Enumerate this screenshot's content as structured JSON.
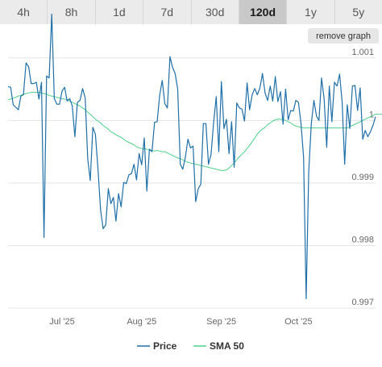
{
  "tabs": [
    {
      "label": "4h",
      "active": false
    },
    {
      "label": "8h",
      "active": false
    },
    {
      "label": "1d",
      "active": false
    },
    {
      "label": "7d",
      "active": false
    },
    {
      "label": "30d",
      "active": false
    },
    {
      "label": "120d",
      "active": true
    },
    {
      "label": "1y",
      "active": false
    },
    {
      "label": "5y",
      "active": false
    }
  ],
  "remove_graph_label": "remove graph",
  "colors": {
    "price": "#1f6fa8",
    "sma": "#4ccf87",
    "grid": "#e6e6e6",
    "active_tab": "#c9c9c9"
  },
  "chart_data": {
    "type": "line",
    "ylim": [
      0.997,
      1.0011
    ],
    "yticks": [
      {
        "value": 0.997,
        "label": "0.997"
      },
      {
        "value": 0.998,
        "label": "0.998"
      },
      {
        "value": 0.999,
        "label": "0.999"
      },
      {
        "value": 1.0,
        "label": "1"
      },
      {
        "value": 1.001,
        "label": "1.001"
      }
    ],
    "xticks": [
      {
        "label": "Jul '25",
        "index": 21
      },
      {
        "label": "Aug '25",
        "index": 52
      },
      {
        "label": "Sep '25",
        "index": 83
      },
      {
        "label": "Oct '25",
        "index": 113
      }
    ],
    "series": [
      {
        "name": "Price",
        "values": [
          1.00054,
          1.00053,
          1.00025,
          1.00021,
          1.00017,
          1.00039,
          1.00041,
          1.00092,
          1.00086,
          1.00059,
          1.00059,
          1.00061,
          1.00034,
          1.00061,
          0.99813,
          1.00071,
          1.00068,
          1.0017,
          1.00035,
          1.00026,
          1.00026,
          1.00047,
          1.00053,
          1.00031,
          1.00035,
          1.00023,
          0.99974,
          1.00029,
          1.00032,
          1.00051,
          1.00036,
          0.99938,
          0.99904,
          0.99989,
          0.99978,
          0.99922,
          0.99857,
          0.99827,
          0.99833,
          0.99891,
          0.99867,
          0.99877,
          0.99839,
          0.99883,
          0.99862,
          0.99901,
          0.99899,
          0.99913,
          0.99915,
          0.9993,
          0.99905,
          0.99947,
          0.99929,
          0.99972,
          0.99887,
          0.99954,
          0.9995,
          0.99997,
          0.99998,
          1.0004,
          1.00064,
          1.00027,
          1.0002,
          1.00102,
          1.00085,
          1.00075,
          1.0005,
          0.9993,
          0.99922,
          0.99941,
          0.9997,
          0.99956,
          0.99959,
          0.9987,
          0.99891,
          0.99898,
          0.99995,
          0.99995,
          0.9993,
          0.99946,
          0.99997,
          1.00038,
          0.9995,
          1.00062,
          0.99987,
          1.00002,
          0.99947,
          0.99998,
          0.99925,
          1.00028,
          1.0002,
          1.00018,
          0.99999,
          1.0006,
          1.00017,
          1.00041,
          1.00051,
          1.00041,
          1.00052,
          1.00075,
          1.00044,
          1.00032,
          1.00055,
          1.00031,
          1.0007,
          1.0003,
          1.00046,
          0.99994,
          1.0005,
          1.00001,
          1.00016,
          1.00015,
          1.00032,
          1.00029,
          0.99995,
          0.99941,
          0.99715,
          0.99919,
          0.99995,
          1.00032,
          1.00007,
          1.0,
          1.00068,
          1.00034,
          0.99957,
          1.00055,
          0.99998,
          1.00061,
          1.00055,
          1.00074,
          1.0003,
          0.9993,
          1.00025,
          0.99987,
          1.00055,
          1.00056,
          1.00016,
          1.00052,
          0.9997,
          0.99984,
          0.99974,
          0.99982,
          0.99992,
          1.00006
        ]
      },
      {
        "name": "SMA 50",
        "values": [
          1.00033,
          1.00034,
          1.00036,
          1.00037,
          1.00039,
          1.0004,
          1.00042,
          1.00043,
          1.00044,
          1.00045,
          1.00045,
          1.00045,
          1.00045,
          1.00044,
          1.00043,
          1.00042,
          1.0004,
          1.00039,
          1.00038,
          1.00037,
          1.00036,
          1.00035,
          1.00034,
          1.00033,
          1.00031,
          1.00029,
          1.00027,
          1.00025,
          1.00023,
          1.0002,
          1.00017,
          1.00013,
          1.0001,
          1.00006,
          1.00002,
          0.99999,
          0.99996,
          0.99992,
          0.99989,
          0.99986,
          0.99982,
          0.9998,
          0.99977,
          0.99975,
          0.99973,
          0.9997,
          0.99967,
          0.99965,
          0.99963,
          0.99961,
          0.99958,
          0.99956,
          0.99955,
          0.99955,
          0.99954,
          0.99953,
          0.99952,
          0.99951,
          0.99952,
          0.99951,
          0.9995,
          0.9995,
          0.99948,
          0.99946,
          0.99944,
          0.99942,
          0.9994,
          0.99939,
          0.99937,
          0.99935,
          0.99933,
          0.99932,
          0.99931,
          0.9993,
          0.99929,
          0.99928,
          0.99927,
          0.99926,
          0.99925,
          0.99924,
          0.99923,
          0.99922,
          0.99921,
          0.9992,
          0.9992,
          0.99921,
          0.99924,
          0.99928,
          0.99932,
          0.99937,
          0.99942,
          0.99946,
          0.9995,
          0.99955,
          0.9996,
          0.99966,
          0.99972,
          0.99978,
          0.99983,
          0.99986,
          0.99989,
          0.99993,
          0.99996,
          0.99999,
          1.00001,
          1.00002,
          1.00002,
          1.00001,
          1.0,
          0.99998,
          0.99996,
          0.99993,
          0.99991,
          0.9999,
          0.99989,
          0.99988,
          0.99988,
          0.99988,
          0.99988,
          0.99988,
          0.99988,
          0.99988,
          0.99988,
          0.99988,
          0.99988,
          0.99988,
          0.99988,
          0.99988,
          0.99988,
          0.99988,
          0.99988,
          0.99988,
          0.99988,
          0.9999,
          0.99992,
          0.99994,
          0.99996,
          0.99998,
          1.0,
          1.00002,
          1.00004,
          1.00006,
          1.00008,
          1.0001,
          1.0001,
          1.0001,
          1.0001,
          1.0001
        ]
      }
    ],
    "grid": true,
    "legend_position": "bottom-center"
  }
}
